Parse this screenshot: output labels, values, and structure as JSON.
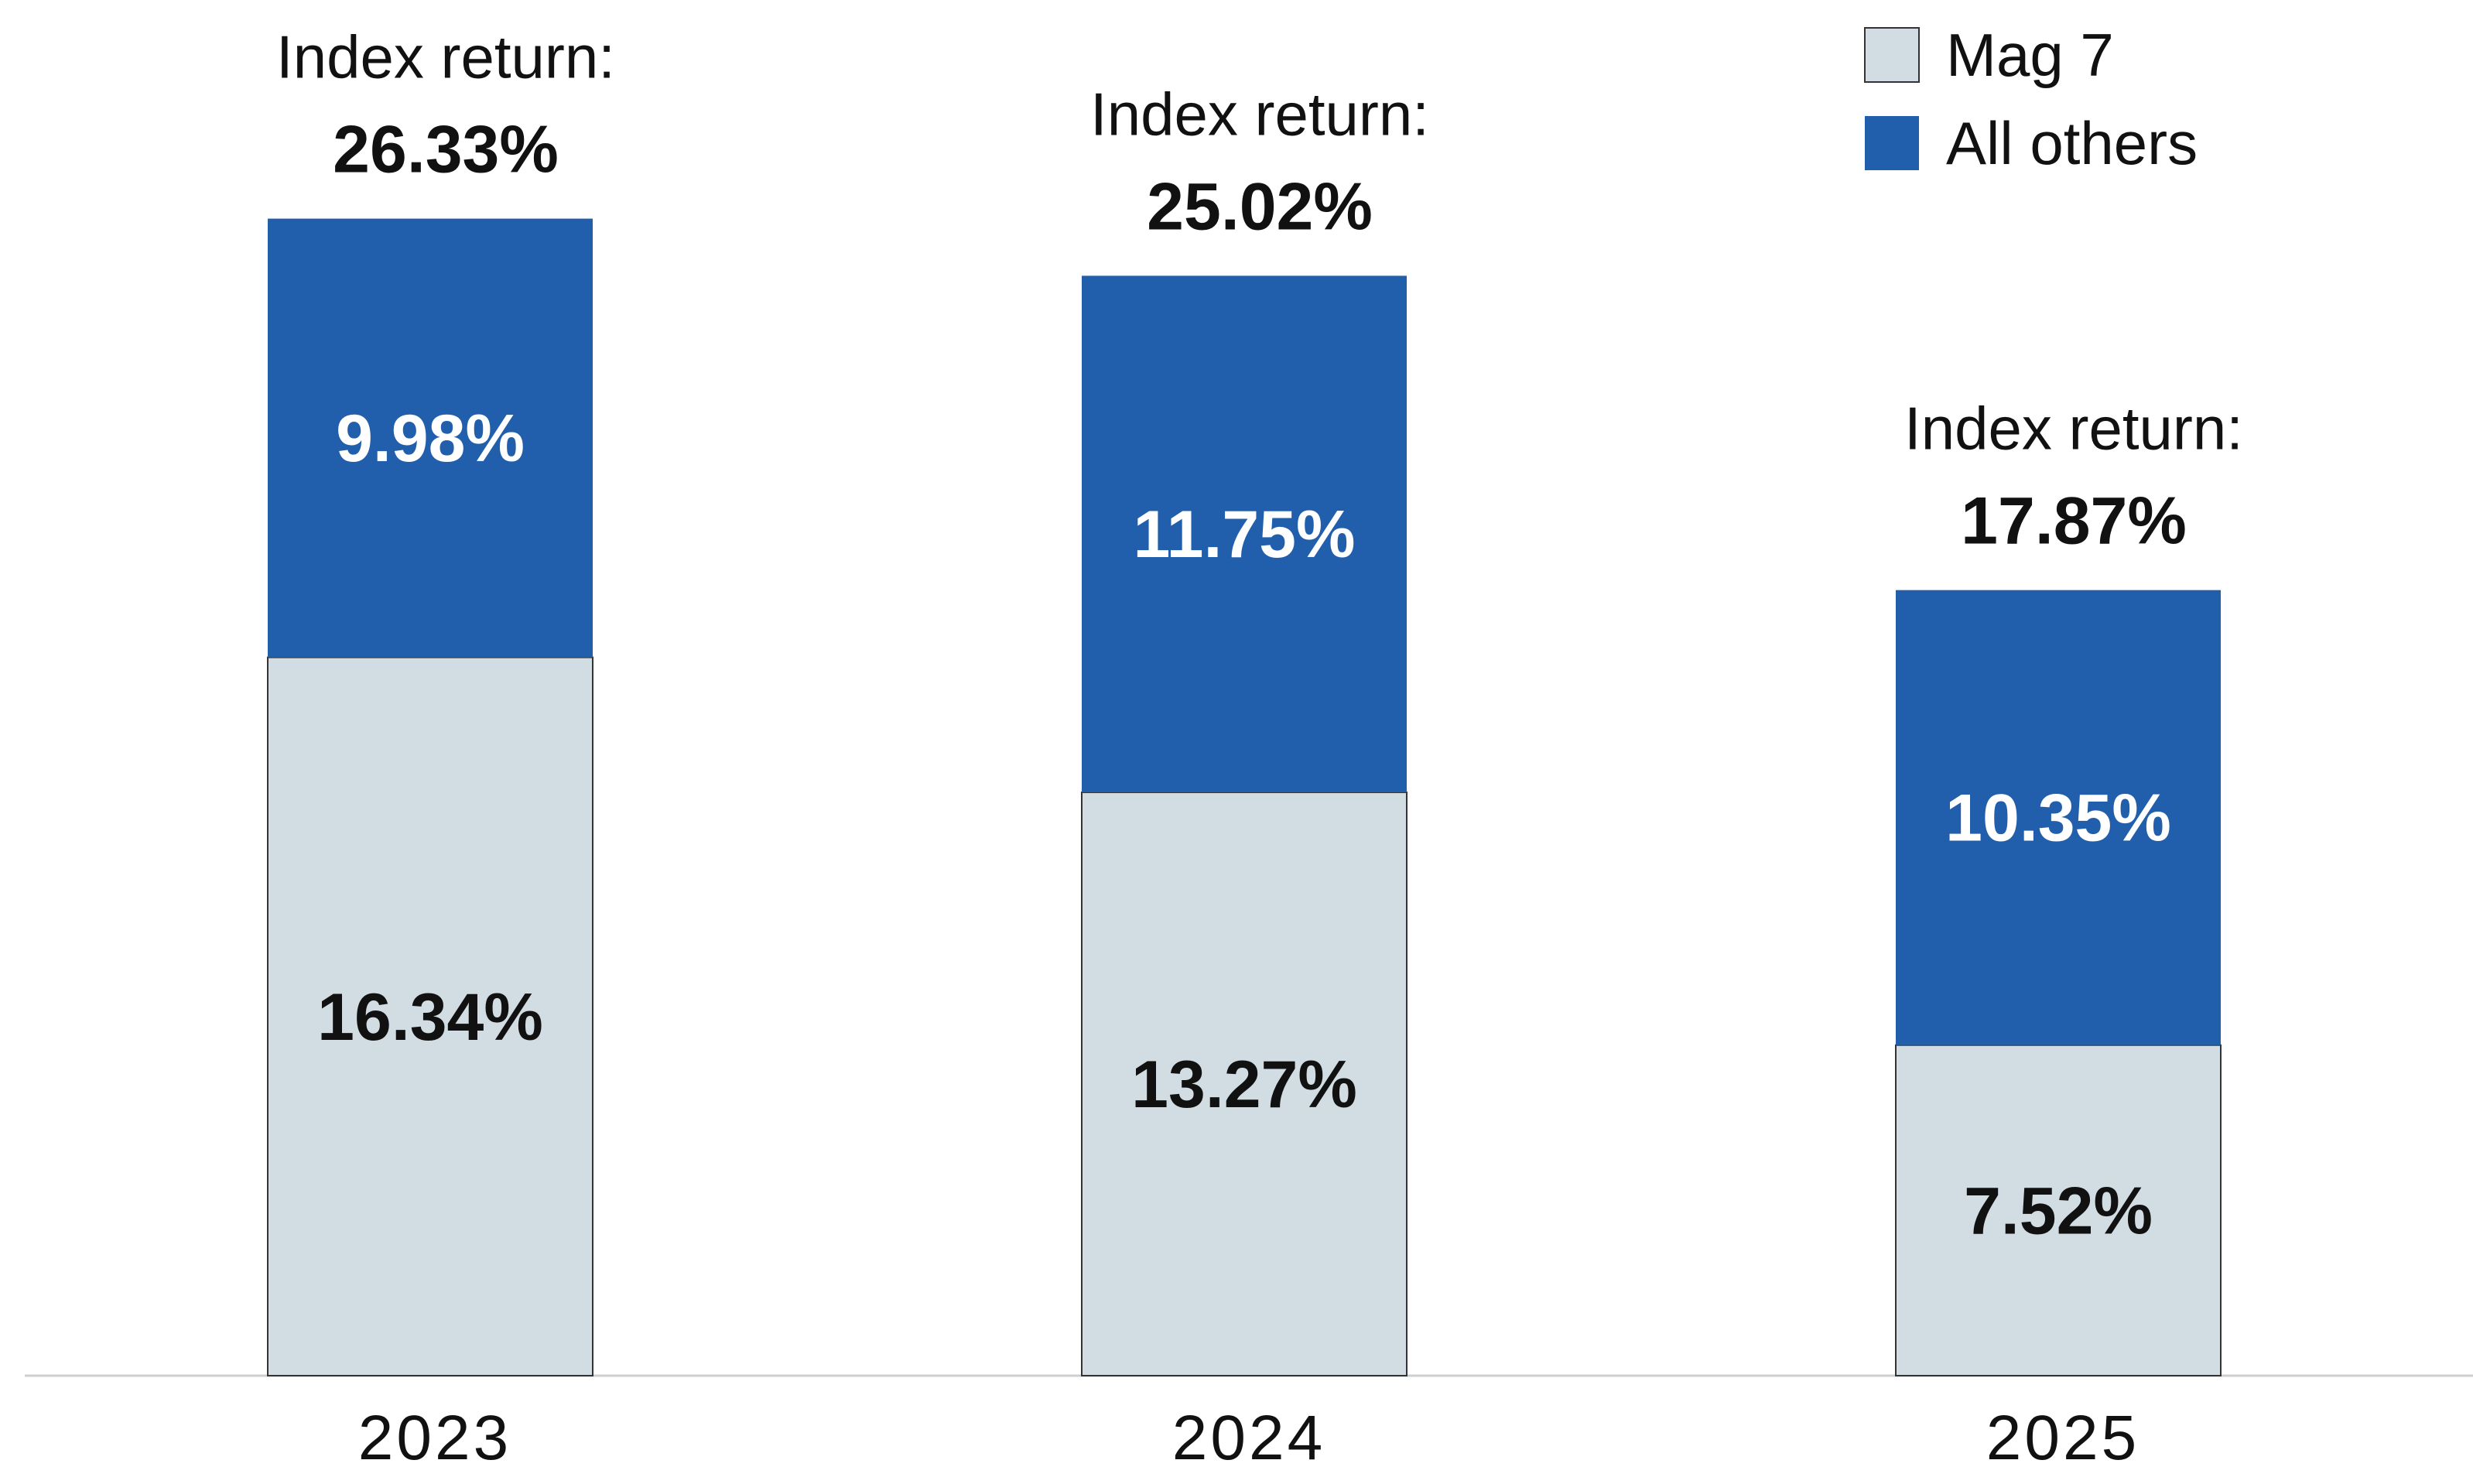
{
  "chart_data": {
    "type": "bar",
    "stacked": true,
    "categories": [
      "2023",
      "2024",
      "2025"
    ],
    "series": [
      {
        "name": "Mag 7",
        "values": [
          16.34,
          13.27,
          7.52
        ],
        "labels": [
          "16.34%",
          "13.27%",
          "7.52%"
        ],
        "color": "#d1dde3",
        "label_color": "#111111"
      },
      {
        "name": "All others",
        "values": [
          9.98,
          11.75,
          10.35
        ],
        "labels": [
          "9.98%",
          "11.75%",
          "10.35%"
        ],
        "color": "#215fac",
        "label_color": "#ffffff"
      }
    ],
    "totals": {
      "label": "Index return:",
      "values": [
        26.33,
        25.02,
        17.87
      ],
      "labels": [
        "26.33%",
        "25.02%",
        "17.87%"
      ]
    },
    "legend_position": "top-right",
    "grid": false,
    "ylim": [
      0,
      26.33
    ],
    "title": "",
    "xlabel": "",
    "ylabel": ""
  },
  "legend": [
    {
      "label": "Mag 7",
      "color": "#d1dde3"
    },
    {
      "label": "All others",
      "color": "#215fac"
    }
  ]
}
